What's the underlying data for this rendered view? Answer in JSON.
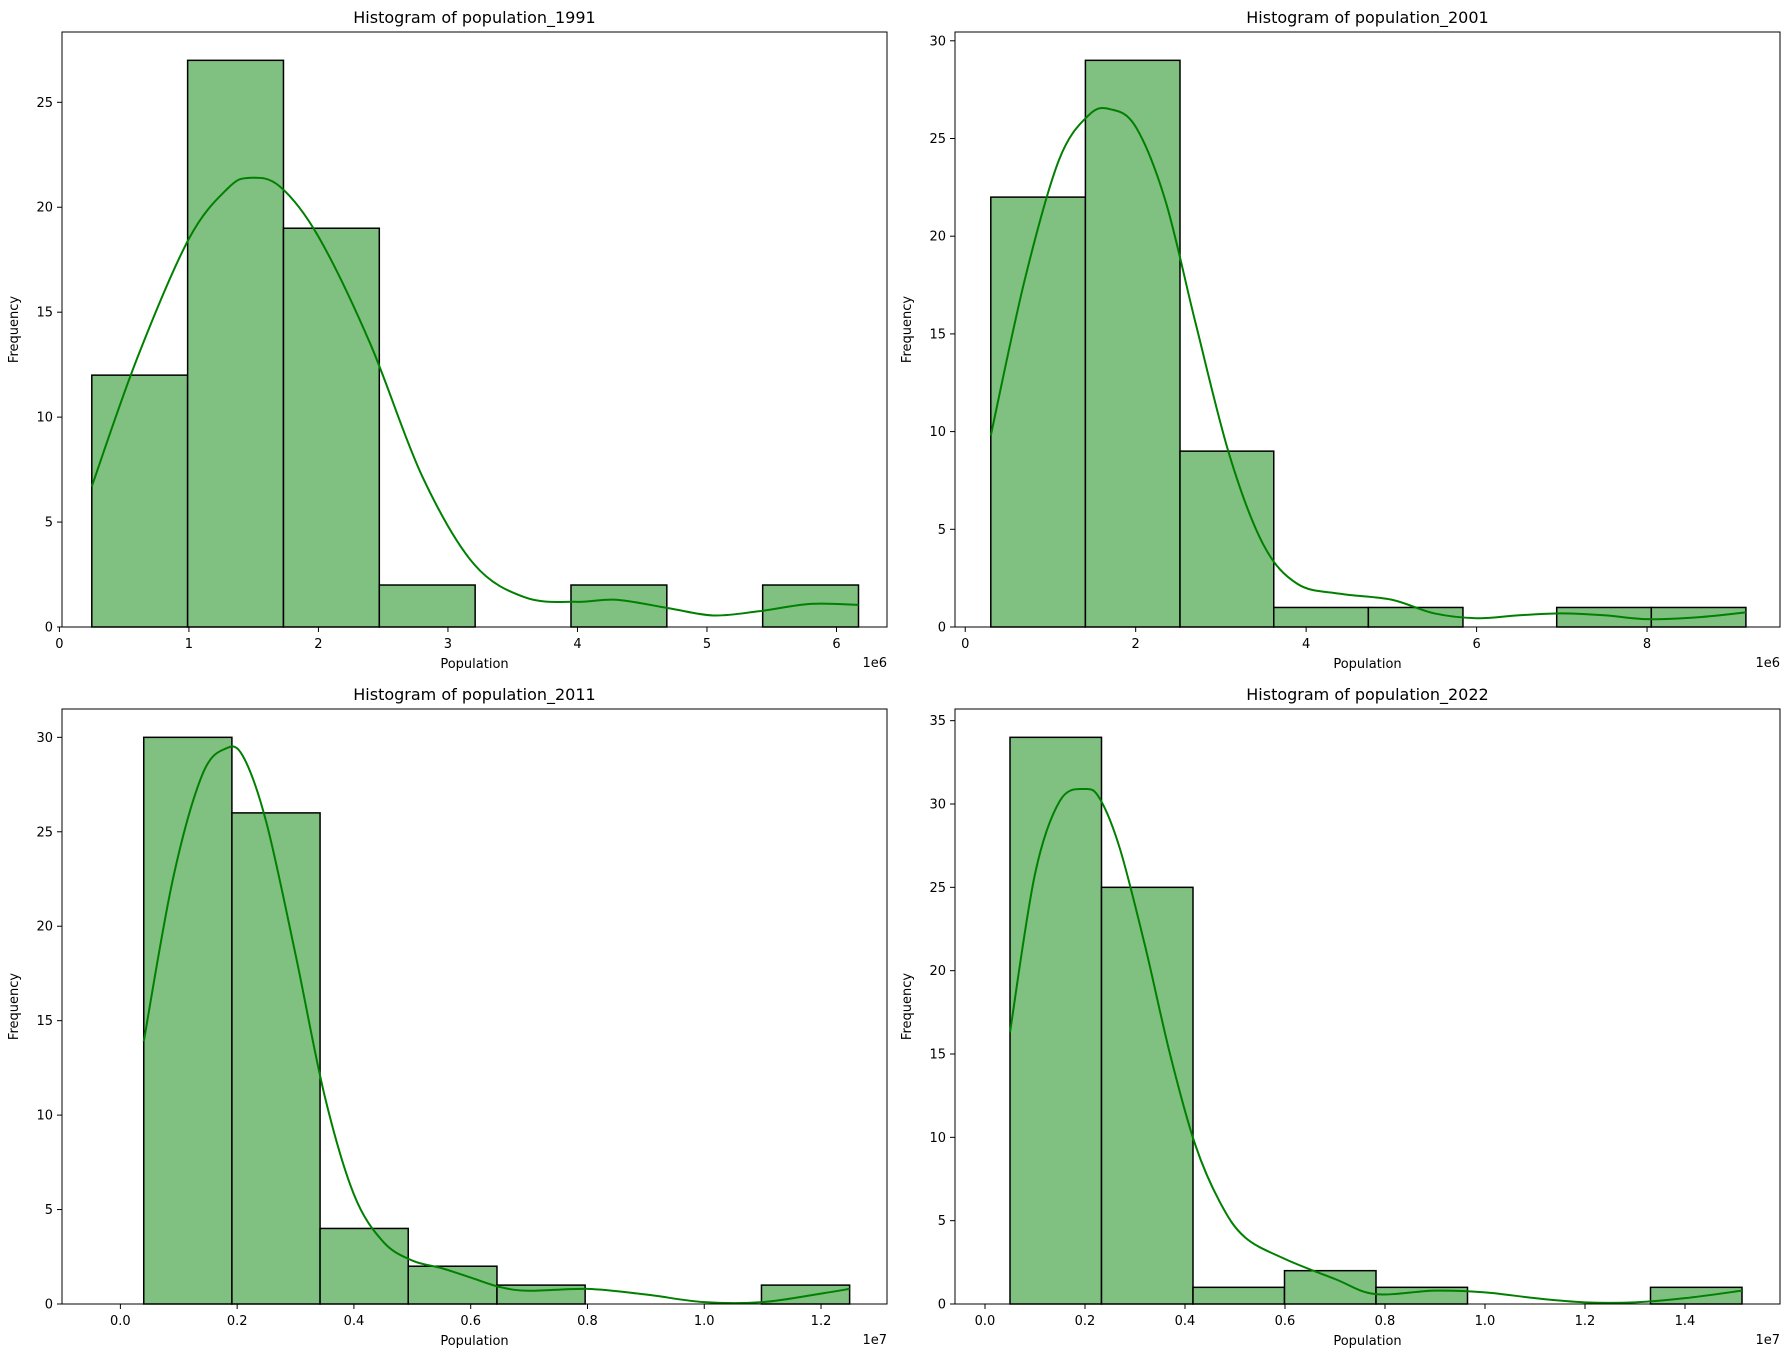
{
  "colors": {
    "bar_fill": "#80c080",
    "bar_edge": "#000000",
    "kde_line": "#008000",
    "axes": "#000000"
  },
  "chart_data": [
    {
      "type": "bar",
      "title": "Histogram of population_1991",
      "xlabel": "Population",
      "ylabel": "Frequency",
      "offset_label": "1e6",
      "xlim": [
        0.02,
        6.39
      ],
      "ylim": [
        0,
        28.35
      ],
      "xticks": [
        0,
        1,
        2,
        3,
        4,
        5,
        6
      ],
      "xtick_labels": [
        "0",
        "1",
        "2",
        "3",
        "4",
        "5",
        "6"
      ],
      "yticks": [
        0,
        5,
        10,
        15,
        20,
        25
      ],
      "ytick_labels": [
        "0",
        "5",
        "10",
        "15",
        "20",
        "25"
      ],
      "bin_edges": [
        0.25,
        0.99,
        1.73,
        2.47,
        3.21,
        3.95,
        4.69,
        5.43,
        6.17
      ],
      "counts": [
        12,
        27,
        19,
        2,
        0,
        2,
        0,
        2
      ],
      "kde": {
        "x": [
          0.25,
          0.6,
          1.0,
          1.3,
          1.47,
          1.7,
          2.0,
          2.4,
          2.8,
          3.2,
          3.6,
          4.0,
          4.3,
          4.7,
          5.05,
          5.4,
          5.8,
          6.17
        ],
        "y": [
          6.7,
          12.8,
          18.5,
          20.9,
          21.4,
          21.0,
          18.6,
          13.5,
          7.2,
          3.0,
          1.4,
          1.2,
          1.3,
          0.9,
          0.55,
          0.75,
          1.1,
          1.05
        ]
      }
    },
    {
      "type": "bar",
      "title": "Histogram of population_2001",
      "xlabel": "Population",
      "ylabel": "Frequency",
      "offset_label": "1e6",
      "xlim": [
        -0.12,
        9.56
      ],
      "ylim": [
        0,
        30.45
      ],
      "xticks": [
        0,
        2,
        4,
        6,
        8
      ],
      "xtick_labels": [
        "0",
        "2",
        "4",
        "6",
        "8"
      ],
      "yticks": [
        0,
        5,
        10,
        15,
        20,
        25,
        30
      ],
      "ytick_labels": [
        "0",
        "5",
        "10",
        "15",
        "20",
        "25",
        "30"
      ],
      "bin_edges": [
        0.3,
        1.41,
        2.52,
        3.62,
        4.73,
        5.84,
        6.94,
        8.05,
        9.16
      ],
      "counts": [
        22,
        29,
        9,
        1,
        1,
        0,
        1,
        1
      ],
      "kde": {
        "x": [
          0.3,
          0.7,
          1.1,
          1.45,
          1.7,
          2.0,
          2.35,
          2.7,
          3.1,
          3.5,
          3.9,
          4.4,
          5.0,
          5.5,
          6.0,
          6.5,
          7.0,
          7.5,
          8.0,
          8.6,
          9.16
        ],
        "y": [
          9.8,
          17.8,
          23.9,
          26.2,
          26.5,
          25.6,
          21.8,
          15.6,
          8.8,
          4.2,
          2.2,
          1.7,
          1.4,
          0.7,
          0.45,
          0.6,
          0.7,
          0.6,
          0.4,
          0.5,
          0.75
        ]
      }
    },
    {
      "type": "bar",
      "title": "Histogram of population_2011",
      "xlabel": "Population",
      "ylabel": "Frequency",
      "offset_label": "1e7",
      "xlim": [
        -0.1,
        1.313
      ],
      "ylim": [
        0,
        31.5
      ],
      "xticks": [
        0,
        0.2,
        0.4,
        0.6,
        0.8,
        1.0,
        1.2
      ],
      "xtick_labels": [
        "0.0",
        "0.2",
        "0.4",
        "0.6",
        "0.8",
        "1.0",
        "1.2"
      ],
      "yticks": [
        0,
        5,
        10,
        15,
        20,
        25,
        30
      ],
      "ytick_labels": [
        "0",
        "5",
        "10",
        "15",
        "20",
        "25",
        "30"
      ],
      "bin_edges": [
        0.04,
        0.191,
        0.342,
        0.493,
        0.645,
        0.796,
        0.947,
        1.098,
        1.249
      ],
      "counts": [
        30,
        26,
        4,
        2,
        1,
        0,
        0,
        1
      ],
      "kde": {
        "x": [
          0.04,
          0.09,
          0.14,
          0.18,
          0.21,
          0.25,
          0.3,
          0.35,
          0.4,
          0.45,
          0.5,
          0.55,
          0.6,
          0.65,
          0.7,
          0.8,
          0.9,
          1.0,
          1.1,
          1.2,
          1.249
        ],
        "y": [
          13.9,
          22.5,
          28.0,
          29.4,
          29.0,
          25.5,
          18.5,
          11.0,
          5.8,
          3.3,
          2.3,
          1.9,
          1.4,
          0.9,
          0.7,
          0.8,
          0.5,
          0.1,
          0.1,
          0.55,
          0.8
        ]
      }
    },
    {
      "type": "bar",
      "title": "Histogram of population_2022",
      "xlabel": "Population",
      "ylabel": "Frequency",
      "offset_label": "1e7",
      "xlim": [
        -0.06,
        1.59
      ],
      "ylim": [
        0,
        35.7
      ],
      "xticks": [
        0,
        0.2,
        0.4,
        0.6,
        0.8,
        1.0,
        1.2,
        1.4
      ],
      "xtick_labels": [
        "0.0",
        "0.2",
        "0.4",
        "0.6",
        "0.8",
        "1.0",
        "1.2",
        "1.4"
      ],
      "yticks": [
        0,
        5,
        10,
        15,
        20,
        25,
        30,
        35
      ],
      "ytick_labels": [
        "0",
        "5",
        "10",
        "15",
        "20",
        "25",
        "30",
        "35"
      ],
      "bin_edges": [
        0.05,
        0.233,
        0.416,
        0.599,
        0.782,
        0.965,
        1.148,
        1.331,
        1.514
      ],
      "counts": [
        34,
        25,
        1,
        2,
        1,
        0,
        0,
        1
      ],
      "kde": {
        "x": [
          0.05,
          0.1,
          0.15,
          0.2,
          0.23,
          0.27,
          0.32,
          0.37,
          0.42,
          0.47,
          0.52,
          0.6,
          0.7,
          0.78,
          0.9,
          1.0,
          1.1,
          1.2,
          1.3,
          1.4,
          1.514
        ],
        "y": [
          16.3,
          25.8,
          30.2,
          30.9,
          30.3,
          27.3,
          21.5,
          15.0,
          9.6,
          6.1,
          4.0,
          2.7,
          1.5,
          0.6,
          0.8,
          0.7,
          0.35,
          0.1,
          0.1,
          0.35,
          0.8
        ]
      }
    }
  ]
}
